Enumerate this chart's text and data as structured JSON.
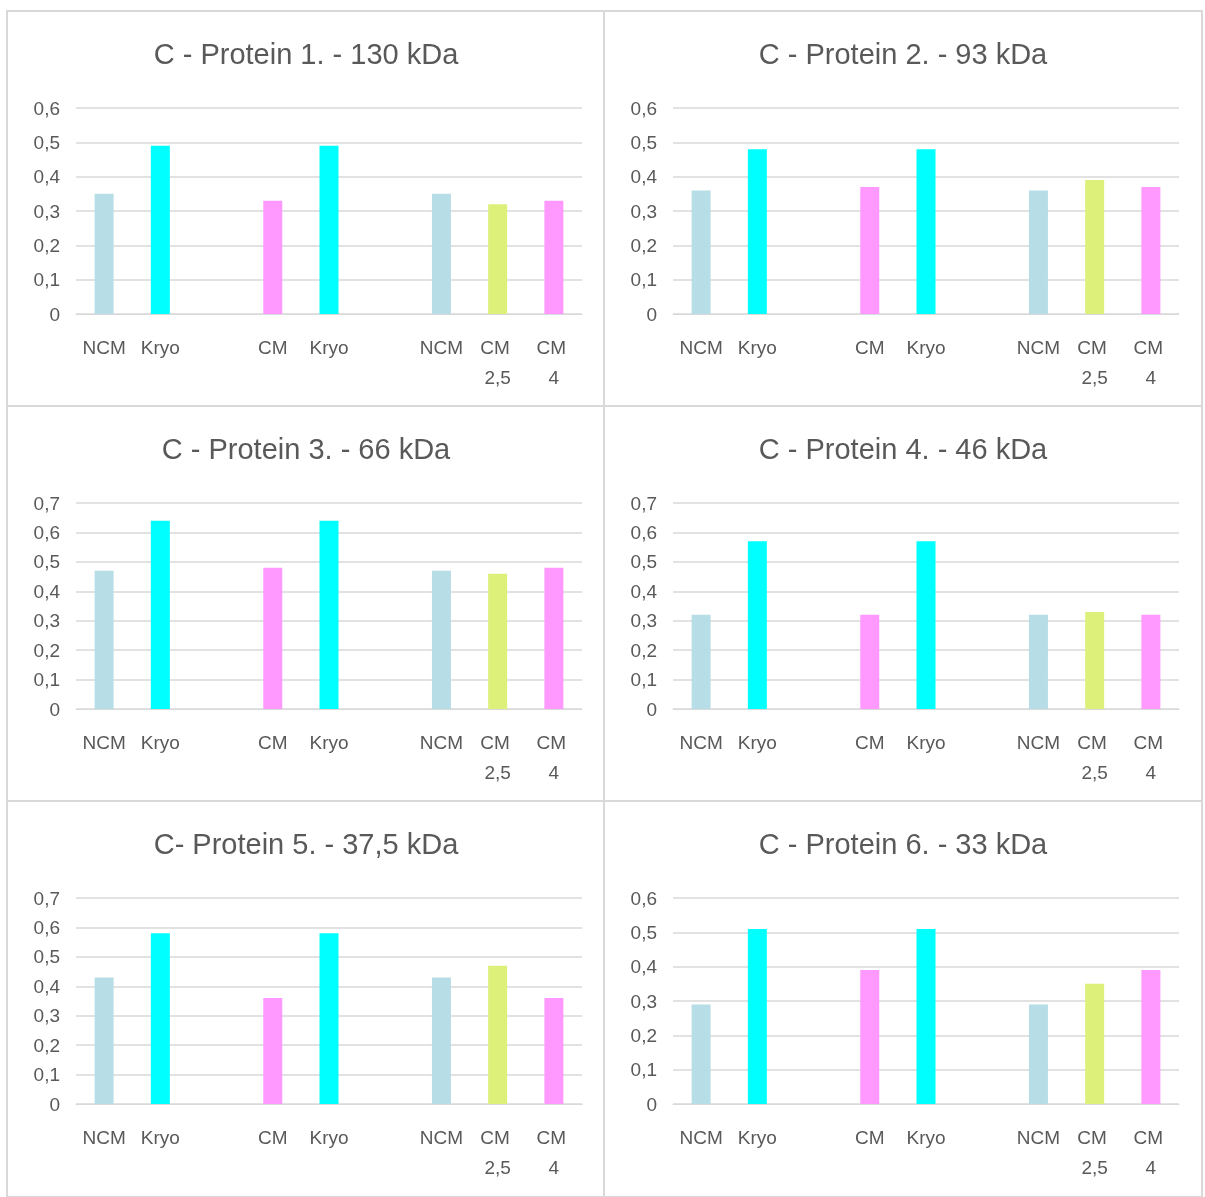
{
  "chart_data": [
    {
      "type": "bar",
      "title": "C - Protein 1. - 130 kDa",
      "categories": [
        "NCM",
        "Kryo",
        null,
        "CM",
        "Kryo",
        null,
        "NCM",
        "CM 2,5",
        "CM 4"
      ],
      "values": [
        0.35,
        0.49,
        null,
        0.33,
        0.49,
        null,
        0.35,
        0.32,
        0.33
      ],
      "colors": [
        "#b7dde6",
        "#00ffff",
        "#b7dde6",
        "#ff99ff",
        "#00ffff",
        "#b7dde6",
        "#b7dde6",
        "#dcf07a",
        "#ff99ff"
      ],
      "ylim": [
        0,
        0.6
      ],
      "yticks": [
        {
          "value": 0,
          "label": "0"
        },
        {
          "value": 0.1,
          "label": "0,1"
        },
        {
          "value": 0.2,
          "label": "0,2"
        },
        {
          "value": 0.3,
          "label": "0,3"
        },
        {
          "value": 0.4,
          "label": "0,4"
        },
        {
          "value": 0.5,
          "label": "0,5"
        },
        {
          "value": 0.6,
          "label": "0,6"
        }
      ],
      "grid": "y"
    },
    {
      "type": "bar",
      "title": "C - Protein 2. - 93 kDa",
      "categories": [
        "NCM",
        "Kryo",
        null,
        "CM",
        "Kryo",
        null,
        "NCM",
        "CM 2,5",
        "CM 4"
      ],
      "values": [
        0.36,
        0.48,
        null,
        0.37,
        0.48,
        null,
        0.36,
        0.39,
        0.37
      ],
      "colors": [
        "#b7dde6",
        "#00ffff",
        "#b7dde6",
        "#ff99ff",
        "#00ffff",
        "#b7dde6",
        "#b7dde6",
        "#dcf07a",
        "#ff99ff"
      ],
      "ylim": [
        0,
        0.6
      ],
      "yticks": [
        {
          "value": 0,
          "label": "0"
        },
        {
          "value": 0.1,
          "label": "0,1"
        },
        {
          "value": 0.2,
          "label": "0,2"
        },
        {
          "value": 0.3,
          "label": "0,3"
        },
        {
          "value": 0.4,
          "label": "0,4"
        },
        {
          "value": 0.5,
          "label": "0,5"
        },
        {
          "value": 0.6,
          "label": "0,6"
        }
      ],
      "grid": "y"
    },
    {
      "type": "bar",
      "title": "C - Protein 3. - 66 kDa",
      "categories": [
        "NCM",
        "Kryo",
        null,
        "CM",
        "Kryo",
        null,
        "NCM",
        "CM 2,5",
        "CM 4"
      ],
      "values": [
        0.47,
        0.64,
        null,
        0.48,
        0.64,
        null,
        0.47,
        0.46,
        0.48
      ],
      "colors": [
        "#b7dde6",
        "#00ffff",
        "#b7dde6",
        "#ff99ff",
        "#00ffff",
        "#b7dde6",
        "#b7dde6",
        "#dcf07a",
        "#ff99ff"
      ],
      "ylim": [
        0,
        0.7
      ],
      "yticks": [
        {
          "value": 0,
          "label": "0"
        },
        {
          "value": 0.1,
          "label": "0,1"
        },
        {
          "value": 0.2,
          "label": "0,2"
        },
        {
          "value": 0.3,
          "label": "0,3"
        },
        {
          "value": 0.4,
          "label": "0,4"
        },
        {
          "value": 0.5,
          "label": "0,5"
        },
        {
          "value": 0.6,
          "label": "0,6"
        },
        {
          "value": 0.7,
          "label": "0,7"
        }
      ],
      "grid": "y"
    },
    {
      "type": "bar",
      "title": "C - Protein 4. - 46 kDa",
      "categories": [
        "NCM",
        "Kryo",
        null,
        "CM",
        "Kryo",
        null,
        "NCM",
        "CM 2,5",
        "CM 4"
      ],
      "values": [
        0.32,
        0.57,
        null,
        0.32,
        0.57,
        null,
        0.32,
        0.33,
        0.32
      ],
      "colors": [
        "#b7dde6",
        "#00ffff",
        "#b7dde6",
        "#ff99ff",
        "#00ffff",
        "#b7dde6",
        "#b7dde6",
        "#dcf07a",
        "#ff99ff"
      ],
      "ylim": [
        0,
        0.7
      ],
      "yticks": [
        {
          "value": 0,
          "label": "0"
        },
        {
          "value": 0.1,
          "label": "0,1"
        },
        {
          "value": 0.2,
          "label": "0,2"
        },
        {
          "value": 0.3,
          "label": "0,3"
        },
        {
          "value": 0.4,
          "label": "0,4"
        },
        {
          "value": 0.5,
          "label": "0,5"
        },
        {
          "value": 0.6,
          "label": "0,6"
        },
        {
          "value": 0.7,
          "label": "0,7"
        }
      ],
      "grid": "y"
    },
    {
      "type": "bar",
      "title": "C- Protein 5. - 37,5 kDa",
      "categories": [
        "NCM",
        "Kryo",
        null,
        "CM",
        "Kryo",
        null,
        "NCM",
        "CM 2,5",
        "CM 4"
      ],
      "values": [
        0.43,
        0.58,
        null,
        0.36,
        0.58,
        null,
        0.43,
        0.47,
        0.36
      ],
      "colors": [
        "#b7dde6",
        "#00ffff",
        "#b7dde6",
        "#ff99ff",
        "#00ffff",
        "#b7dde6",
        "#b7dde6",
        "#dcf07a",
        "#ff99ff"
      ],
      "ylim": [
        0,
        0.7
      ],
      "yticks": [
        {
          "value": 0,
          "label": "0"
        },
        {
          "value": 0.1,
          "label": "0,1"
        },
        {
          "value": 0.2,
          "label": "0,2"
        },
        {
          "value": 0.3,
          "label": "0,3"
        },
        {
          "value": 0.4,
          "label": "0,4"
        },
        {
          "value": 0.5,
          "label": "0,5"
        },
        {
          "value": 0.6,
          "label": "0,6"
        },
        {
          "value": 0.7,
          "label": "0,7"
        }
      ],
      "grid": "y"
    },
    {
      "type": "bar",
      "title": "C - Protein 6. - 33 kDa",
      "categories": [
        "NCM",
        "Kryo",
        null,
        "CM",
        "Kryo",
        null,
        "NCM",
        "CM 2,5",
        "CM 4"
      ],
      "values": [
        0.29,
        0.51,
        null,
        0.39,
        0.51,
        null,
        0.29,
        0.35,
        0.39
      ],
      "colors": [
        "#b7dde6",
        "#00ffff",
        "#b7dde6",
        "#ff99ff",
        "#00ffff",
        "#b7dde6",
        "#b7dde6",
        "#dcf07a",
        "#ff99ff"
      ],
      "ylim": [
        0,
        0.6
      ],
      "yticks": [
        {
          "value": 0,
          "label": "0"
        },
        {
          "value": 0.1,
          "label": "0,1"
        },
        {
          "value": 0.2,
          "label": "0,2"
        },
        {
          "value": 0.3,
          "label": "0,3"
        },
        {
          "value": 0.4,
          "label": "0,4"
        },
        {
          "value": 0.5,
          "label": "0,5"
        },
        {
          "value": 0.6,
          "label": "0,6"
        }
      ],
      "grid": "y"
    }
  ]
}
